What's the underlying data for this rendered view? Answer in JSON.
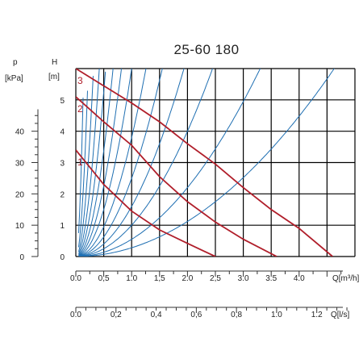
{
  "title": "25-60 180",
  "axes": {
    "left_pressure": {
      "symbol": "p",
      "unit": "[kPa]",
      "ticks": [
        "0",
        "10",
        "20",
        "30",
        "40"
      ],
      "range": [
        0,
        60
      ]
    },
    "head": {
      "symbol": "H",
      "unit": "[m]",
      "ticks": [
        "0",
        "1",
        "2",
        "3",
        "4",
        "5"
      ],
      "range": [
        0,
        6
      ]
    },
    "flow_m3h": {
      "label": "Q[m³/h]",
      "ticks": [
        "0.0",
        "0,5",
        "1.0",
        "1,5",
        "2.0",
        "2,5",
        "3.0",
        "3.5",
        "4.0"
      ],
      "range": [
        0,
        5
      ]
    },
    "flow_ls": {
      "label": "Q[l/s]",
      "ticks": [
        "0.0",
        "0,2",
        "0,4",
        "0,6",
        "0,8",
        "1.0",
        "1.2"
      ],
      "range": [
        0,
        1.39
      ]
    }
  },
  "colors": {
    "pump_curve": "#b01e2a",
    "system_curve": "#1f6fb2",
    "grid": "#000000",
    "axis": "#333333"
  },
  "chart_data": {
    "type": "line",
    "title": "25-60 180",
    "xlabel": "Q[m³/h]",
    "ylabel": "H [m]",
    "xlim": [
      0,
      5
    ],
    "ylim": [
      0,
      6
    ],
    "grid": true,
    "series": [
      {
        "name": "1",
        "x": [
          0.0,
          0.5,
          1.0,
          1.5,
          2.0,
          2.5
        ],
        "y": [
          3.4,
          2.3,
          1.45,
          0.85,
          0.42,
          0.0
        ]
      },
      {
        "name": "2",
        "x": [
          0.0,
          0.5,
          1.0,
          1.5,
          2.0,
          2.5,
          3.0,
          3.6
        ],
        "y": [
          5.1,
          4.3,
          3.55,
          2.55,
          1.75,
          1.1,
          0.55,
          0.0
        ]
      },
      {
        "name": "3",
        "x": [
          0.0,
          0.5,
          1.0,
          1.5,
          2.0,
          2.5,
          3.0,
          3.5,
          4.0,
          4.6
        ],
        "y": [
          6.0,
          5.45,
          4.9,
          4.3,
          3.6,
          2.95,
          2.2,
          1.5,
          0.9,
          0.0
        ]
      }
    ],
    "system_curves": {
      "equation": "H = k * Q^2",
      "k": [
        300,
        120,
        60,
        34,
        21,
        13.5,
        9,
        6,
        3.8,
        2.5,
        1.6,
        1.0,
        0.55,
        0.28
      ]
    }
  }
}
